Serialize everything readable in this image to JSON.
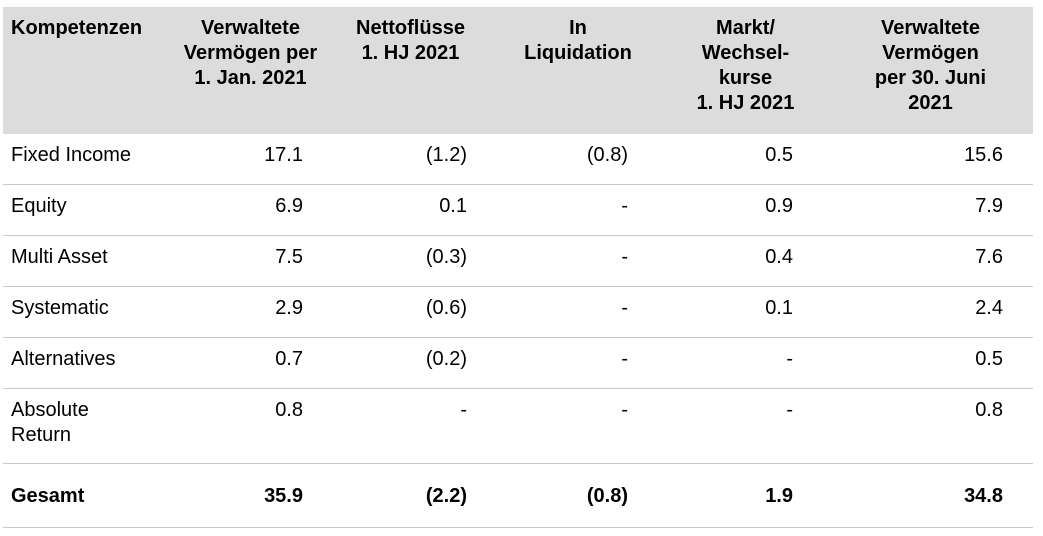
{
  "table": {
    "headers": [
      "Kompetenzen",
      "Verwaltete\nVermögen per\n1. Jan. 2021",
      "Nettoflüsse\n1. HJ 2021",
      "In\nLiquidation",
      "Markt/\nWechsel-\nkurse\n1. HJ 2021",
      "Verwaltete\nVermögen\nper 30. Juni\n2021"
    ],
    "rows": [
      [
        "Fixed Income",
        "17.1",
        "(1.2)",
        "(0.8)",
        "0.5",
        "15.6"
      ],
      [
        "Equity",
        "6.9",
        "0.1",
        "-",
        "0.9",
        "7.9"
      ],
      [
        "Multi Asset",
        "7.5",
        "(0.3)",
        "-",
        "0.4",
        "7.6"
      ],
      [
        "Systematic",
        "2.9",
        "(0.6)",
        "-",
        "0.1",
        "2.4"
      ],
      [
        "Alternatives",
        "0.7",
        "(0.2)",
        "-",
        "-",
        "0.5"
      ],
      [
        "Absolute\nReturn",
        "0.8",
        "-",
        "-",
        "-",
        "0.8"
      ]
    ],
    "total": [
      "Gesamt",
      "35.9",
      "(2.2)",
      "(0.8)",
      "1.9",
      "34.8"
    ]
  },
  "colors": {
    "header_background": "#dcdcdc",
    "row_divider": "#c8c8c8",
    "text": "#000000"
  }
}
